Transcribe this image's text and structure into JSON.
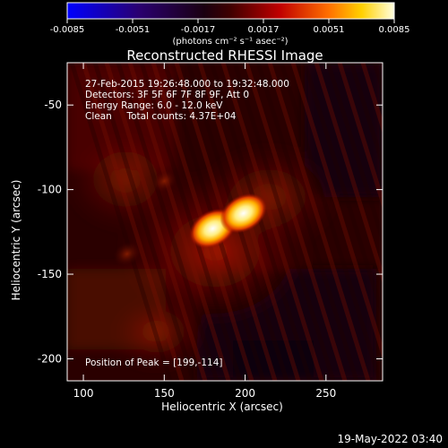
{
  "chart_data": {
    "type": "heatmap",
    "title": "Reconstructed RHESSI Image",
    "xlabel": "Heliocentric X (arcsec)",
    "ylabel": "Heliocentric Y (arcsec)",
    "xlim": [
      90,
      285
    ],
    "ylim": [
      -213,
      -25
    ],
    "x_ticks": [
      100,
      150,
      200,
      250
    ],
    "y_ticks": [
      -50,
      -100,
      -150,
      -200
    ],
    "colorbar": {
      "ticks": [
        "-0.0085",
        "-0.0051",
        "-0.0017",
        "0.0017",
        "0.0051",
        "0.0085"
      ],
      "range": [
        -0.0085,
        0.0085
      ],
      "units_label": "(photons cm⁻² s⁻¹ asec⁻²)"
    },
    "annotations": [
      "27-Feb-2015 19:26:48.000 to 19:32:48.000",
      "Detectors: 3F 5F 6F 7F 8F 9F, Att 0",
      "Energy Range: 6.0 - 12.0 keV",
      "Clean     Total counts: 4.37E+04"
    ],
    "peak_label": "Position of Peak = [199,-114]",
    "peak": [
      199,
      -114
    ],
    "sources": [
      {
        "x": 180,
        "y": -123,
        "value": 0.0085
      },
      {
        "x": 199,
        "y": -114,
        "value": 0.0085
      },
      {
        "x": 127,
        "y": -138,
        "value": 0.0022
      },
      {
        "x": 150,
        "y": -95,
        "value": 0.0015
      }
    ]
  },
  "footer": {
    "timestamp": "19-May-2022 03:40"
  }
}
